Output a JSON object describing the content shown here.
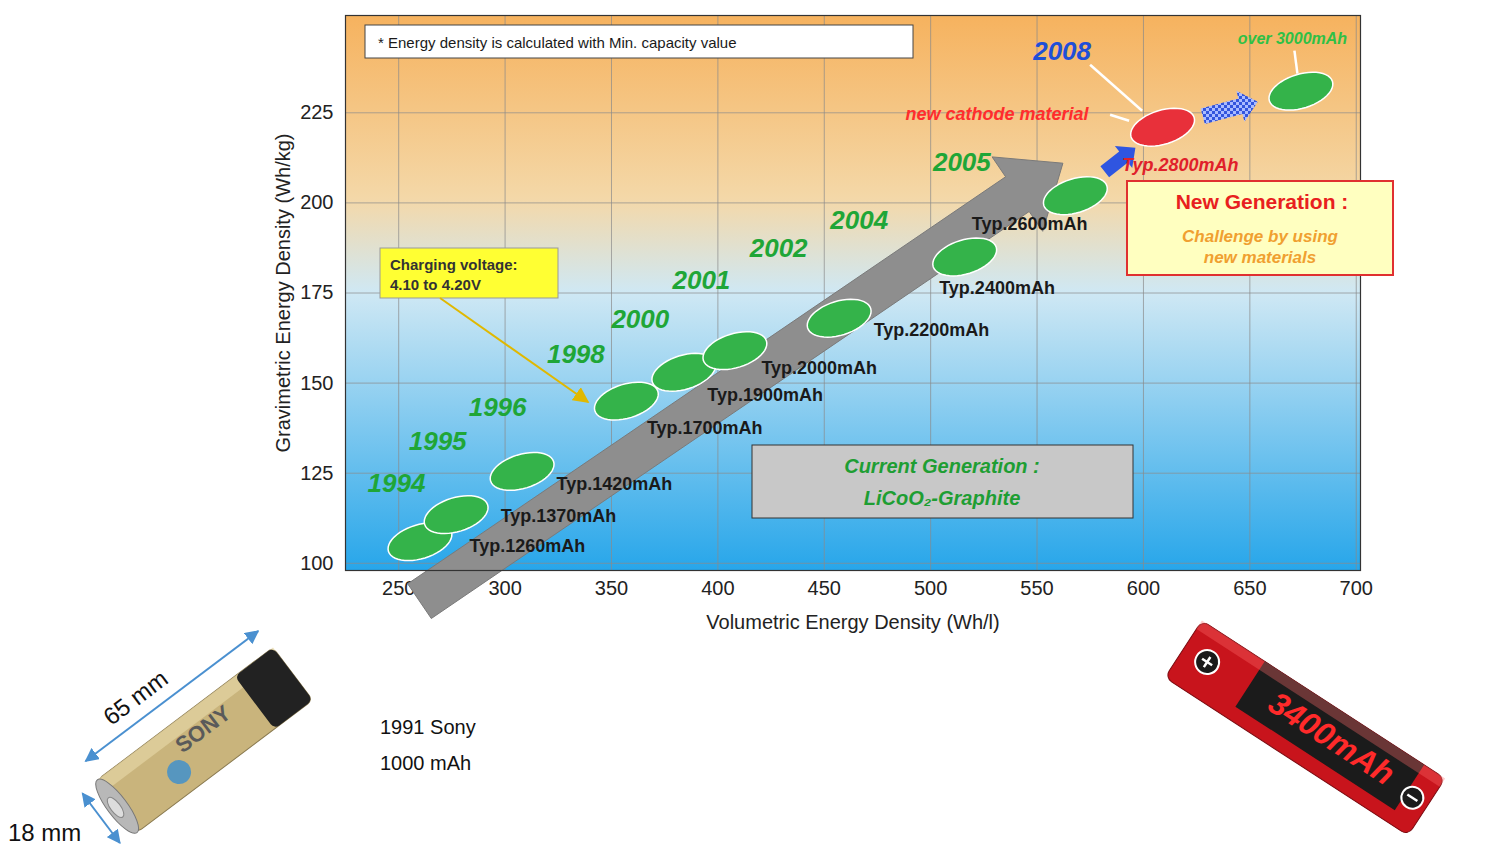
{
  "chart_data": {
    "type": "scatter",
    "x_label": "Volumetric Energy Density (Wh/l)",
    "y_label": "Gravimetric Energy Density (Wh/kg)",
    "xlim": [
      225,
      702
    ],
    "xticks": [
      250,
      300,
      350,
      400,
      450,
      500,
      550,
      600,
      650,
      700
    ],
    "ylim": [
      98,
      252
    ],
    "yticks": [
      100,
      125,
      150,
      175,
      200,
      225
    ],
    "grid": true,
    "marker": "ellipse",
    "points": [
      {
        "year": "1994",
        "label": "Typ.1260mAh",
        "x": 260,
        "y": 106,
        "color": "#34b34a"
      },
      {
        "year": "1995",
        "label": "Typ.1370mAh",
        "x": 277,
        "y": 113.5,
        "color": "#34b34a"
      },
      {
        "year": "1996",
        "label": "Typ.1420mAh",
        "x": 308,
        "y": 125.5,
        "color": "#34b34a"
      },
      {
        "year": "1998",
        "label": "Typ.1700mAh",
        "x": 357,
        "y": 145,
        "color": "#34b34a"
      },
      {
        "year": "2000",
        "label": "Typ.1900mAh",
        "x": 384,
        "y": 153,
        "color": "#34b34a"
      },
      {
        "year": "2001",
        "label": "Typ.2000mAh",
        "x": 408,
        "y": 159,
        "color": "#34b34a"
      },
      {
        "year": "2002",
        "label": "Typ.2200mAh",
        "x": 457,
        "y": 168,
        "color": "#34b34a"
      },
      {
        "year": "2004",
        "label": "Typ.2400mAh",
        "x": 516,
        "y": 185,
        "color": "#34b34a"
      },
      {
        "year": "2005",
        "label": "Typ.2600mAh",
        "x": 568,
        "y": 202,
        "color": "#34b34a"
      },
      {
        "year": "2008",
        "label": "Typ.2800mAh",
        "x": 609,
        "y": 221,
        "color": "#e8303a"
      },
      {
        "year": null,
        "label": "over 3000mAh",
        "x": 674,
        "y": 231,
        "color": "#34b34a"
      }
    ],
    "annotations": {
      "note": "* Energy density is calculated with Min. capacity value",
      "charging": [
        "Charging voltage:",
        "4.10 to 4.20V"
      ],
      "current_generation": [
        "Current Generation :",
        "LiCoO₂-Graphite"
      ],
      "new_cathode": "new cathode material",
      "new_generation": [
        "New Generation :",
        "Challenge by using",
        "new materials"
      ]
    },
    "cells": [
      {
        "brand": "SONY",
        "length": "65 mm",
        "diameter": "18 mm",
        "caption": [
          "1991 Sony",
          "1000 mAh"
        ]
      },
      {
        "label": "3400mAh"
      }
    ]
  }
}
